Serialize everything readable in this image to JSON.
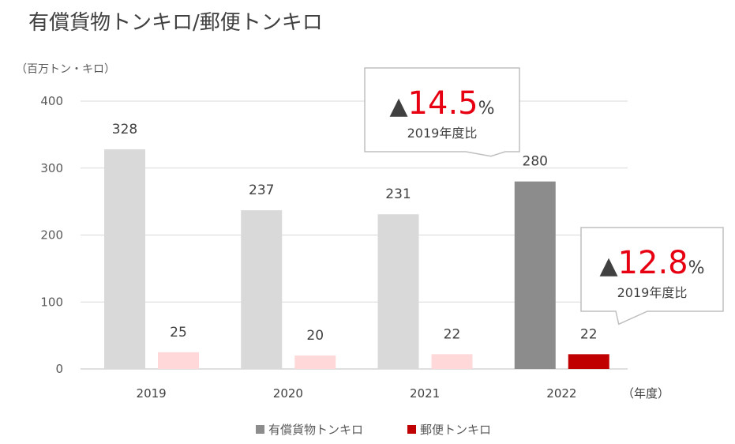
{
  "title": "有償貨物トンキロ/郵便トンキロ",
  "unit_label": "（百万トン・キロ）",
  "x_unit_label": "（年度）",
  "colors": {
    "cargo": "#d9d9d9",
    "cargo_highlight": "#8c8c8c",
    "mail": "#ffd9d9",
    "mail_highlight": "#c00000",
    "accent": "#e60012",
    "legend_cargo": "#8c8c8c",
    "legend_mail": "#c00000"
  },
  "chart_data": {
    "type": "bar",
    "categories": [
      "2019",
      "2020",
      "2021",
      "2022"
    ],
    "series": [
      {
        "name": "有償貨物トンキロ",
        "values": [
          328,
          237,
          231,
          280
        ],
        "data_labels": [
          "328",
          "237",
          "231",
          "280"
        ]
      },
      {
        "name": "郵便トンキロ",
        "values": [
          25,
          20,
          22,
          22
        ],
        "data_labels": [
          "25",
          "20",
          "22",
          "22"
        ]
      }
    ],
    "ylim": [
      0,
      400
    ],
    "yticks": [
      0,
      100,
      200,
      300,
      400
    ],
    "ytick_labels": [
      "0",
      "100",
      "200",
      "300",
      "400"
    ],
    "grid": true,
    "legend": "bottom",
    "highlight_category": "2022",
    "annotations": [
      {
        "target": "有償貨物トンキロ 2022",
        "prefix": "▲",
        "value": "14.5",
        "suffix": "%",
        "note": "2019年度比"
      },
      {
        "target": "郵便トンキロ 2022",
        "prefix": "▲",
        "value": "12.8",
        "suffix": "%",
        "note": "2019年度比"
      }
    ]
  }
}
